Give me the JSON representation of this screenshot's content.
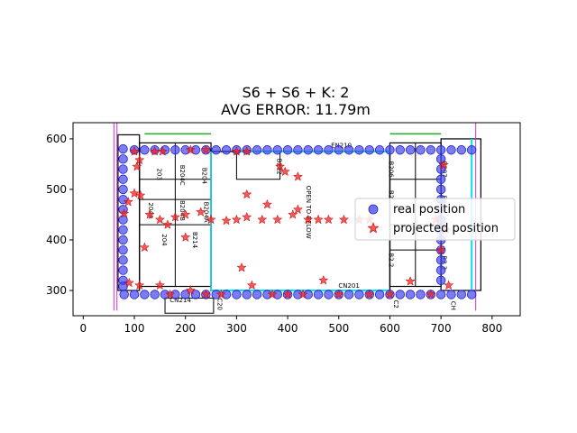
{
  "chart_data": {
    "type": "scatter",
    "title_line1": "S6 + S6 + K: 2",
    "title_line2": "AVG ERROR: 11.79m",
    "xlim": [
      -20,
      855
    ],
    "ylim": [
      250,
      632
    ],
    "xticks": [
      0,
      100,
      200,
      300,
      400,
      500,
      600,
      700,
      800
    ],
    "yticks": [
      300,
      400,
      500,
      600
    ],
    "colors": {
      "real": "#4444ee",
      "projected": "#ee2222",
      "plan_line": "#000000",
      "plan_cyan": "#00e5ee",
      "plan_green": "#22aa22",
      "plan_magenta": "#cc33cc"
    },
    "legend": {
      "location": "center-right",
      "entries": [
        {
          "label": "real position",
          "marker": "circle"
        },
        {
          "label": "projected position",
          "marker": "star"
        }
      ]
    },
    "floorplan_labels": [
      {
        "text": "203",
        "x": 145,
        "y": 530,
        "rotate": 90
      },
      {
        "text": "B204C",
        "x": 190,
        "y": 528,
        "rotate": 90
      },
      {
        "text": "B204",
        "x": 233,
        "y": 527,
        "rotate": 90
      },
      {
        "text": "204A",
        "x": 128,
        "y": 458,
        "rotate": 90
      },
      {
        "text": "B204B",
        "x": 190,
        "y": 458,
        "rotate": 90
      },
      {
        "text": "B204A",
        "x": 237,
        "y": 455,
        "rotate": 90
      },
      {
        "text": "204",
        "x": 155,
        "y": 400,
        "rotate": 90
      },
      {
        "text": "B214",
        "x": 215,
        "y": 400,
        "rotate": 90
      },
      {
        "text": "B212",
        "x": 380,
        "y": 545,
        "rotate": 90
      },
      {
        "text": "OPEN TO BELOW",
        "x": 437,
        "y": 455,
        "rotate": 90
      },
      {
        "text": "B206",
        "x": 598,
        "y": 540,
        "rotate": 90
      },
      {
        "text": "B207",
        "x": 702,
        "y": 540,
        "rotate": 90
      },
      {
        "text": "B2",
        "x": 598,
        "y": 490,
        "rotate": 90
      },
      {
        "text": "B2",
        "x": 702,
        "y": 480,
        "rotate": 90
      },
      {
        "text": "B2 2",
        "x": 598,
        "y": 360,
        "rotate": 90
      },
      {
        "text": "B2 3",
        "x": 702,
        "y": 355,
        "rotate": 90
      },
      {
        "text": "C20",
        "x": 263,
        "y": 273,
        "rotate": 90
      },
      {
        "text": "C2",
        "x": 608,
        "y": 273,
        "rotate": 90
      },
      {
        "text": "CH",
        "x": 720,
        "y": 270,
        "rotate": 90
      },
      {
        "text": "CN214",
        "x": 190,
        "y": 277,
        "rotate": 0
      },
      {
        "text": "CN201",
        "x": 520,
        "y": 305,
        "rotate": 0
      },
      {
        "text": "EN210",
        "x": 505,
        "y": 583,
        "rotate": 0
      }
    ],
    "real_position": [
      [
        78,
        580
      ],
      [
        100,
        578
      ],
      [
        120,
        578
      ],
      [
        140,
        578
      ],
      [
        160,
        578
      ],
      [
        180,
        578
      ],
      [
        200,
        578
      ],
      [
        220,
        578
      ],
      [
        240,
        578
      ],
      [
        260,
        578
      ],
      [
        280,
        578
      ],
      [
        300,
        578
      ],
      [
        320,
        578
      ],
      [
        340,
        578
      ],
      [
        360,
        578
      ],
      [
        380,
        578
      ],
      [
        400,
        578
      ],
      [
        420,
        578
      ],
      [
        440,
        578
      ],
      [
        460,
        578
      ],
      [
        480,
        578
      ],
      [
        500,
        578
      ],
      [
        520,
        578
      ],
      [
        540,
        578
      ],
      [
        560,
        578
      ],
      [
        580,
        578
      ],
      [
        600,
        578
      ],
      [
        620,
        578
      ],
      [
        640,
        578
      ],
      [
        660,
        578
      ],
      [
        680,
        578
      ],
      [
        700,
        578
      ],
      [
        720,
        578
      ],
      [
        740,
        578
      ],
      [
        760,
        578
      ],
      [
        78,
        560
      ],
      [
        78,
        540
      ],
      [
        78,
        520
      ],
      [
        78,
        500
      ],
      [
        78,
        480
      ],
      [
        78,
        460
      ],
      [
        78,
        440
      ],
      [
        78,
        420
      ],
      [
        78,
        400
      ],
      [
        78,
        380
      ],
      [
        78,
        360
      ],
      [
        78,
        340
      ],
      [
        78,
        320
      ],
      [
        78,
        308
      ],
      [
        700,
        560
      ],
      [
        700,
        540
      ],
      [
        700,
        520
      ],
      [
        700,
        500
      ],
      [
        700,
        480
      ],
      [
        700,
        460
      ],
      [
        700,
        440
      ],
      [
        700,
        420
      ],
      [
        700,
        400
      ],
      [
        700,
        380
      ],
      [
        700,
        360
      ],
      [
        700,
        340
      ],
      [
        700,
        320
      ],
      [
        80,
        292
      ],
      [
        100,
        292
      ],
      [
        120,
        292
      ],
      [
        140,
        292
      ],
      [
        160,
        292
      ],
      [
        180,
        292
      ],
      [
        200,
        292
      ],
      [
        220,
        292
      ],
      [
        240,
        292
      ],
      [
        260,
        292
      ],
      [
        280,
        292
      ],
      [
        300,
        292
      ],
      [
        320,
        292
      ],
      [
        340,
        292
      ],
      [
        360,
        292
      ],
      [
        380,
        292
      ],
      [
        400,
        292
      ],
      [
        420,
        292
      ],
      [
        440,
        292
      ],
      [
        460,
        292
      ],
      [
        480,
        292
      ],
      [
        500,
        292
      ],
      [
        520,
        292
      ],
      [
        540,
        292
      ],
      [
        560,
        292
      ],
      [
        580,
        292
      ],
      [
        600,
        292
      ],
      [
        620,
        292
      ],
      [
        640,
        292
      ],
      [
        660,
        292
      ],
      [
        680,
        292
      ],
      [
        700,
        292
      ],
      [
        720,
        292
      ],
      [
        740,
        292
      ],
      [
        760,
        292
      ]
    ],
    "projected_position": [
      [
        100,
        575
      ],
      [
        110,
        558
      ],
      [
        105,
        545
      ],
      [
        140,
        575
      ],
      [
        155,
        575
      ],
      [
        210,
        578
      ],
      [
        240,
        578
      ],
      [
        300,
        575
      ],
      [
        320,
        575
      ],
      [
        385,
        545
      ],
      [
        395,
        535
      ],
      [
        420,
        525
      ],
      [
        705,
        548
      ],
      [
        100,
        492
      ],
      [
        112,
        488
      ],
      [
        88,
        475
      ],
      [
        80,
        452
      ],
      [
        130,
        450
      ],
      [
        150,
        440
      ],
      [
        165,
        430
      ],
      [
        180,
        445
      ],
      [
        200,
        450
      ],
      [
        230,
        455
      ],
      [
        250,
        440
      ],
      [
        280,
        438
      ],
      [
        300,
        440
      ],
      [
        320,
        445
      ],
      [
        350,
        440
      ],
      [
        380,
        440
      ],
      [
        410,
        450
      ],
      [
        440,
        440
      ],
      [
        460,
        440
      ],
      [
        480,
        440
      ],
      [
        510,
        440
      ],
      [
        540,
        440
      ],
      [
        560,
        440
      ],
      [
        320,
        490
      ],
      [
        360,
        470
      ],
      [
        420,
        460
      ],
      [
        120,
        385
      ],
      [
        200,
        405
      ],
      [
        690,
        440
      ],
      [
        710,
        420
      ],
      [
        700,
        380
      ],
      [
        90,
        315
      ],
      [
        110,
        310
      ],
      [
        150,
        310
      ],
      [
        170,
        292
      ],
      [
        210,
        300
      ],
      [
        240,
        292
      ],
      [
        270,
        292
      ],
      [
        310,
        345
      ],
      [
        330,
        310
      ],
      [
        370,
        292
      ],
      [
        400,
        292
      ],
      [
        430,
        292
      ],
      [
        470,
        320
      ],
      [
        500,
        292
      ],
      [
        560,
        292
      ],
      [
        600,
        292
      ],
      [
        640,
        318
      ],
      [
        680,
        292
      ],
      [
        715,
        310
      ]
    ]
  }
}
